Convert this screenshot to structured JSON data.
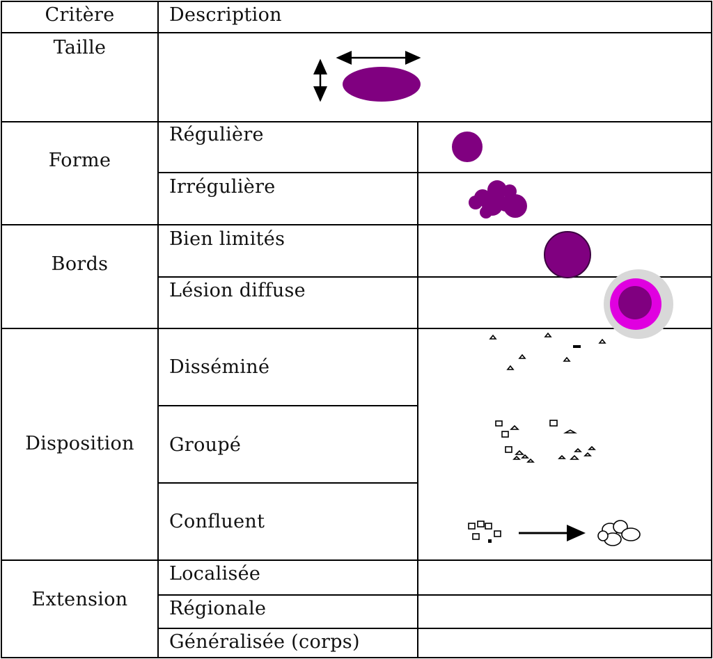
{
  "header": {
    "criterion": "Critère",
    "description": "Description"
  },
  "rows": [
    {
      "criterion": "Taille",
      "items": []
    },
    {
      "criterion": "Forme",
      "items": [
        "Régulière",
        "Irrégulière"
      ]
    },
    {
      "criterion": "Bords",
      "items": [
        "Bien limités",
        "Lésion diffuse"
      ]
    },
    {
      "criterion": "Disposition",
      "items": [
        "Disséminé",
        "Groupé",
        "Confluent"
      ]
    },
    {
      "criterion": "Extension",
      "items": [
        "Localisée",
        "Régionale",
        "Généralisée (corps)"
      ]
    }
  ],
  "colors": {
    "lesion": "#800080",
    "lesion_border": "#3c0040",
    "diffuse_ring": "#e000e0",
    "diffuse_halo": "#d8d8d8",
    "line": "#000000"
  }
}
